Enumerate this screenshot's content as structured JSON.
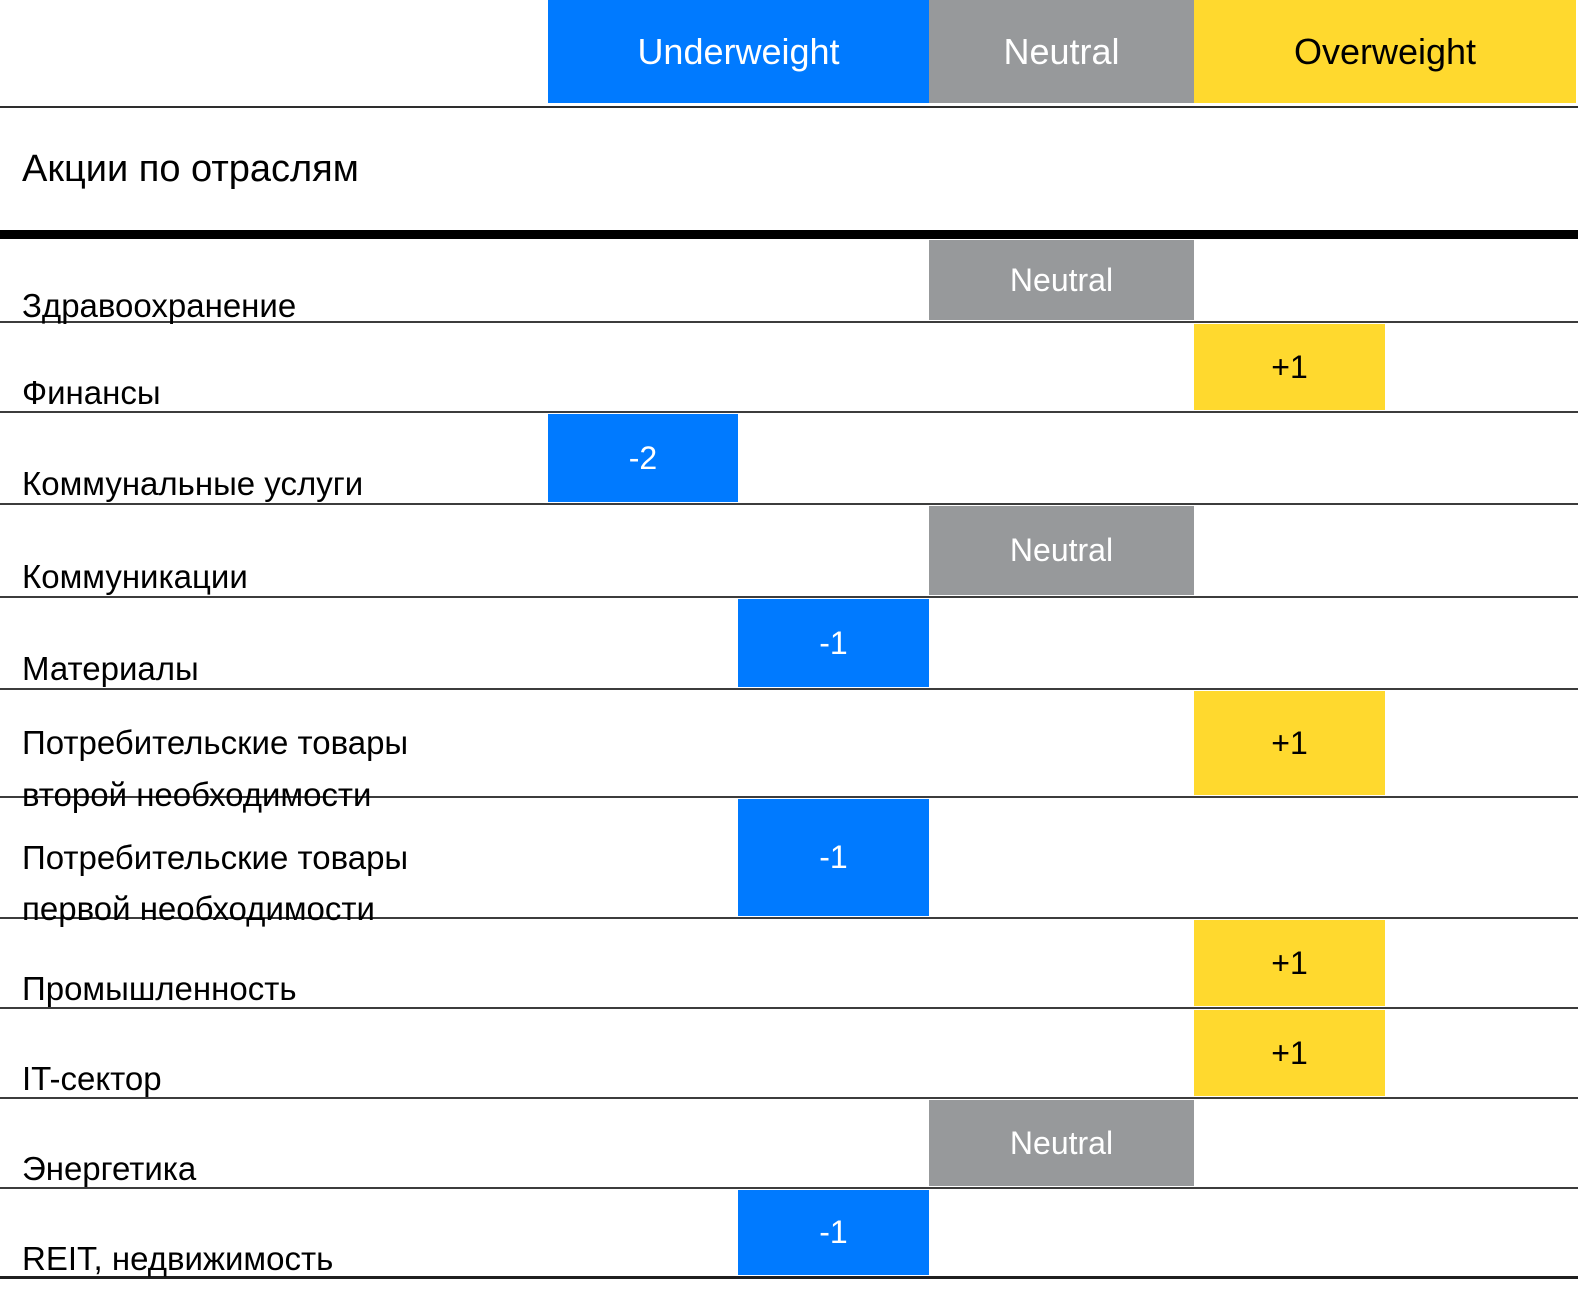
{
  "title": "Акции по отраслям",
  "legend": {
    "underweight": "Underweight",
    "neutral": "Neutral",
    "overweight": "Overweight"
  },
  "colors": {
    "underweight": "#007AFF",
    "neutral": "#97999B",
    "overweight": "#FFD92E"
  },
  "chart_data": {
    "type": "table",
    "title": "Акции по отраслям",
    "scale": {
      "min": -2,
      "max": 2,
      "zones": [
        "Underweight",
        "Neutral",
        "Overweight"
      ]
    },
    "legend_position": "top",
    "rows": [
      {
        "sector": "Здравоохранение",
        "rating": 0,
        "display": "Neutral"
      },
      {
        "sector": "Финансы",
        "rating": 1,
        "display": "+1"
      },
      {
        "sector": "Коммунальные услуги",
        "rating": -2,
        "display": "-2"
      },
      {
        "sector": "Коммуникации",
        "rating": 0,
        "display": "Neutral"
      },
      {
        "sector": "Материалы",
        "rating": -1,
        "display": "-1"
      },
      {
        "sector": "Потребительские товары\nвторой необходимости",
        "rating": 1,
        "display": "+1"
      },
      {
        "sector": "Потребительские товары\nпервой необходимости",
        "rating": -1,
        "display": "-1"
      },
      {
        "sector": "Промышленность",
        "rating": 1,
        "display": "+1"
      },
      {
        "sector": "IT-сектор",
        "rating": 1,
        "display": "+1"
      },
      {
        "sector": "Энергетика",
        "rating": 0,
        "display": "Neutral"
      },
      {
        "sector": "REIT, недвижимость",
        "rating": -1,
        "display": "-1"
      }
    ]
  }
}
